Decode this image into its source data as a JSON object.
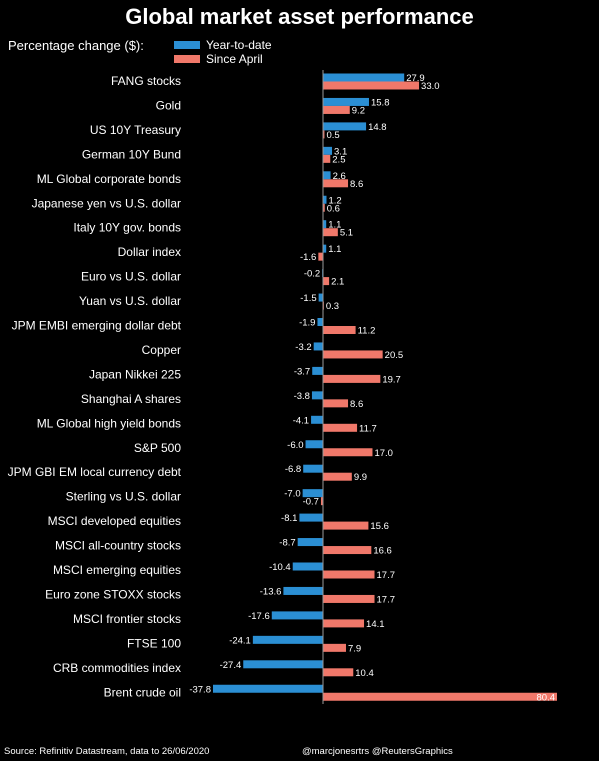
{
  "title": "Global market asset performance",
  "legend": {
    "caption": "Percentage change ($):",
    "ytd_label": "Year-to-date",
    "april_label": "Since April"
  },
  "colors": {
    "ytd": "#2b8fd4",
    "april": "#f0786a",
    "background": "#000000",
    "text": "#ffffff"
  },
  "footer": {
    "source": "Source: Refinitiv Datastream, data to 26/06/2020",
    "credit": "@marcjonesrtrs @ReutersGraphics"
  },
  "chart_data": {
    "type": "bar",
    "orientation": "horizontal",
    "title": "Global market asset performance",
    "categories": [
      "FANG stocks",
      "Gold",
      "US 10Y Treasury",
      "German 10Y Bund",
      "ML Global corporate bonds",
      "Japanese yen vs U.S. dollar",
      "Italy 10Y gov. bonds",
      "Dollar index",
      "Euro vs U.S. dollar",
      "Yuan vs U.S. dollar",
      "JPM EMBI emerging dollar debt",
      "Copper",
      "Japan Nikkei 225",
      "Shanghai A shares",
      "ML Global high yield bonds",
      "S&P 500",
      "JPM GBI EM local currency debt",
      "Sterling vs U.S. dollar",
      "MSCI developed equities",
      "MSCI all-country stocks",
      "MSCI emerging equities",
      "Euro zone STOXX stocks",
      "MSCI frontier stocks",
      "FTSE 100",
      "CRB commodities index",
      "Brent crude oil"
    ],
    "series": [
      {
        "name": "Year-to-date",
        "values": [
          27.9,
          15.8,
          14.8,
          3.1,
          2.6,
          1.2,
          1.1,
          1.1,
          -0.2,
          -1.5,
          -1.9,
          -3.2,
          -3.7,
          -3.8,
          -4.1,
          -6.0,
          -6.8,
          -7.0,
          -8.1,
          -8.7,
          -10.4,
          -13.6,
          -17.6,
          -24.1,
          -27.4,
          -37.8
        ],
        "labels": [
          "27.9",
          "15.8",
          "14.8",
          "3.1",
          "2.6",
          "1.2",
          "1.1",
          "1.1",
          "-0.2",
          "-1.5",
          "-1.9",
          "-3.2",
          "-3.7",
          "-3.8",
          "-4.1",
          "-6.0",
          "-6.8",
          "-7.0",
          "-8.1",
          "-8.7",
          "-10.4",
          "-13.6",
          "-17.6",
          "-24.1",
          "-27.4",
          "-37.8"
        ]
      },
      {
        "name": "Since April",
        "values": [
          33.0,
          9.2,
          0.5,
          2.5,
          8.6,
          0.6,
          5.1,
          -1.6,
          2.1,
          0.3,
          11.2,
          20.5,
          19.7,
          8.6,
          11.7,
          17.0,
          9.9,
          -0.7,
          15.6,
          16.6,
          17.7,
          17.7,
          14.1,
          7.9,
          10.4,
          80.4
        ],
        "labels": [
          "33.0",
          "9.2",
          "0.5",
          "2.5",
          "8.6",
          "0.6",
          "5.1",
          "-1.6",
          "2.1",
          "0.3",
          "11.2",
          "20.5",
          "19.7",
          "8.6",
          "11.7",
          "17.0",
          "9.9",
          "-0.7",
          "15.6",
          "16.6",
          "17.7",
          "17.7",
          "14.1",
          "7.9",
          "10.4",
          "80.4"
        ]
      }
    ],
    "xlim": [
      -40,
      82
    ],
    "grid": false,
    "legend_position": "top-left"
  }
}
